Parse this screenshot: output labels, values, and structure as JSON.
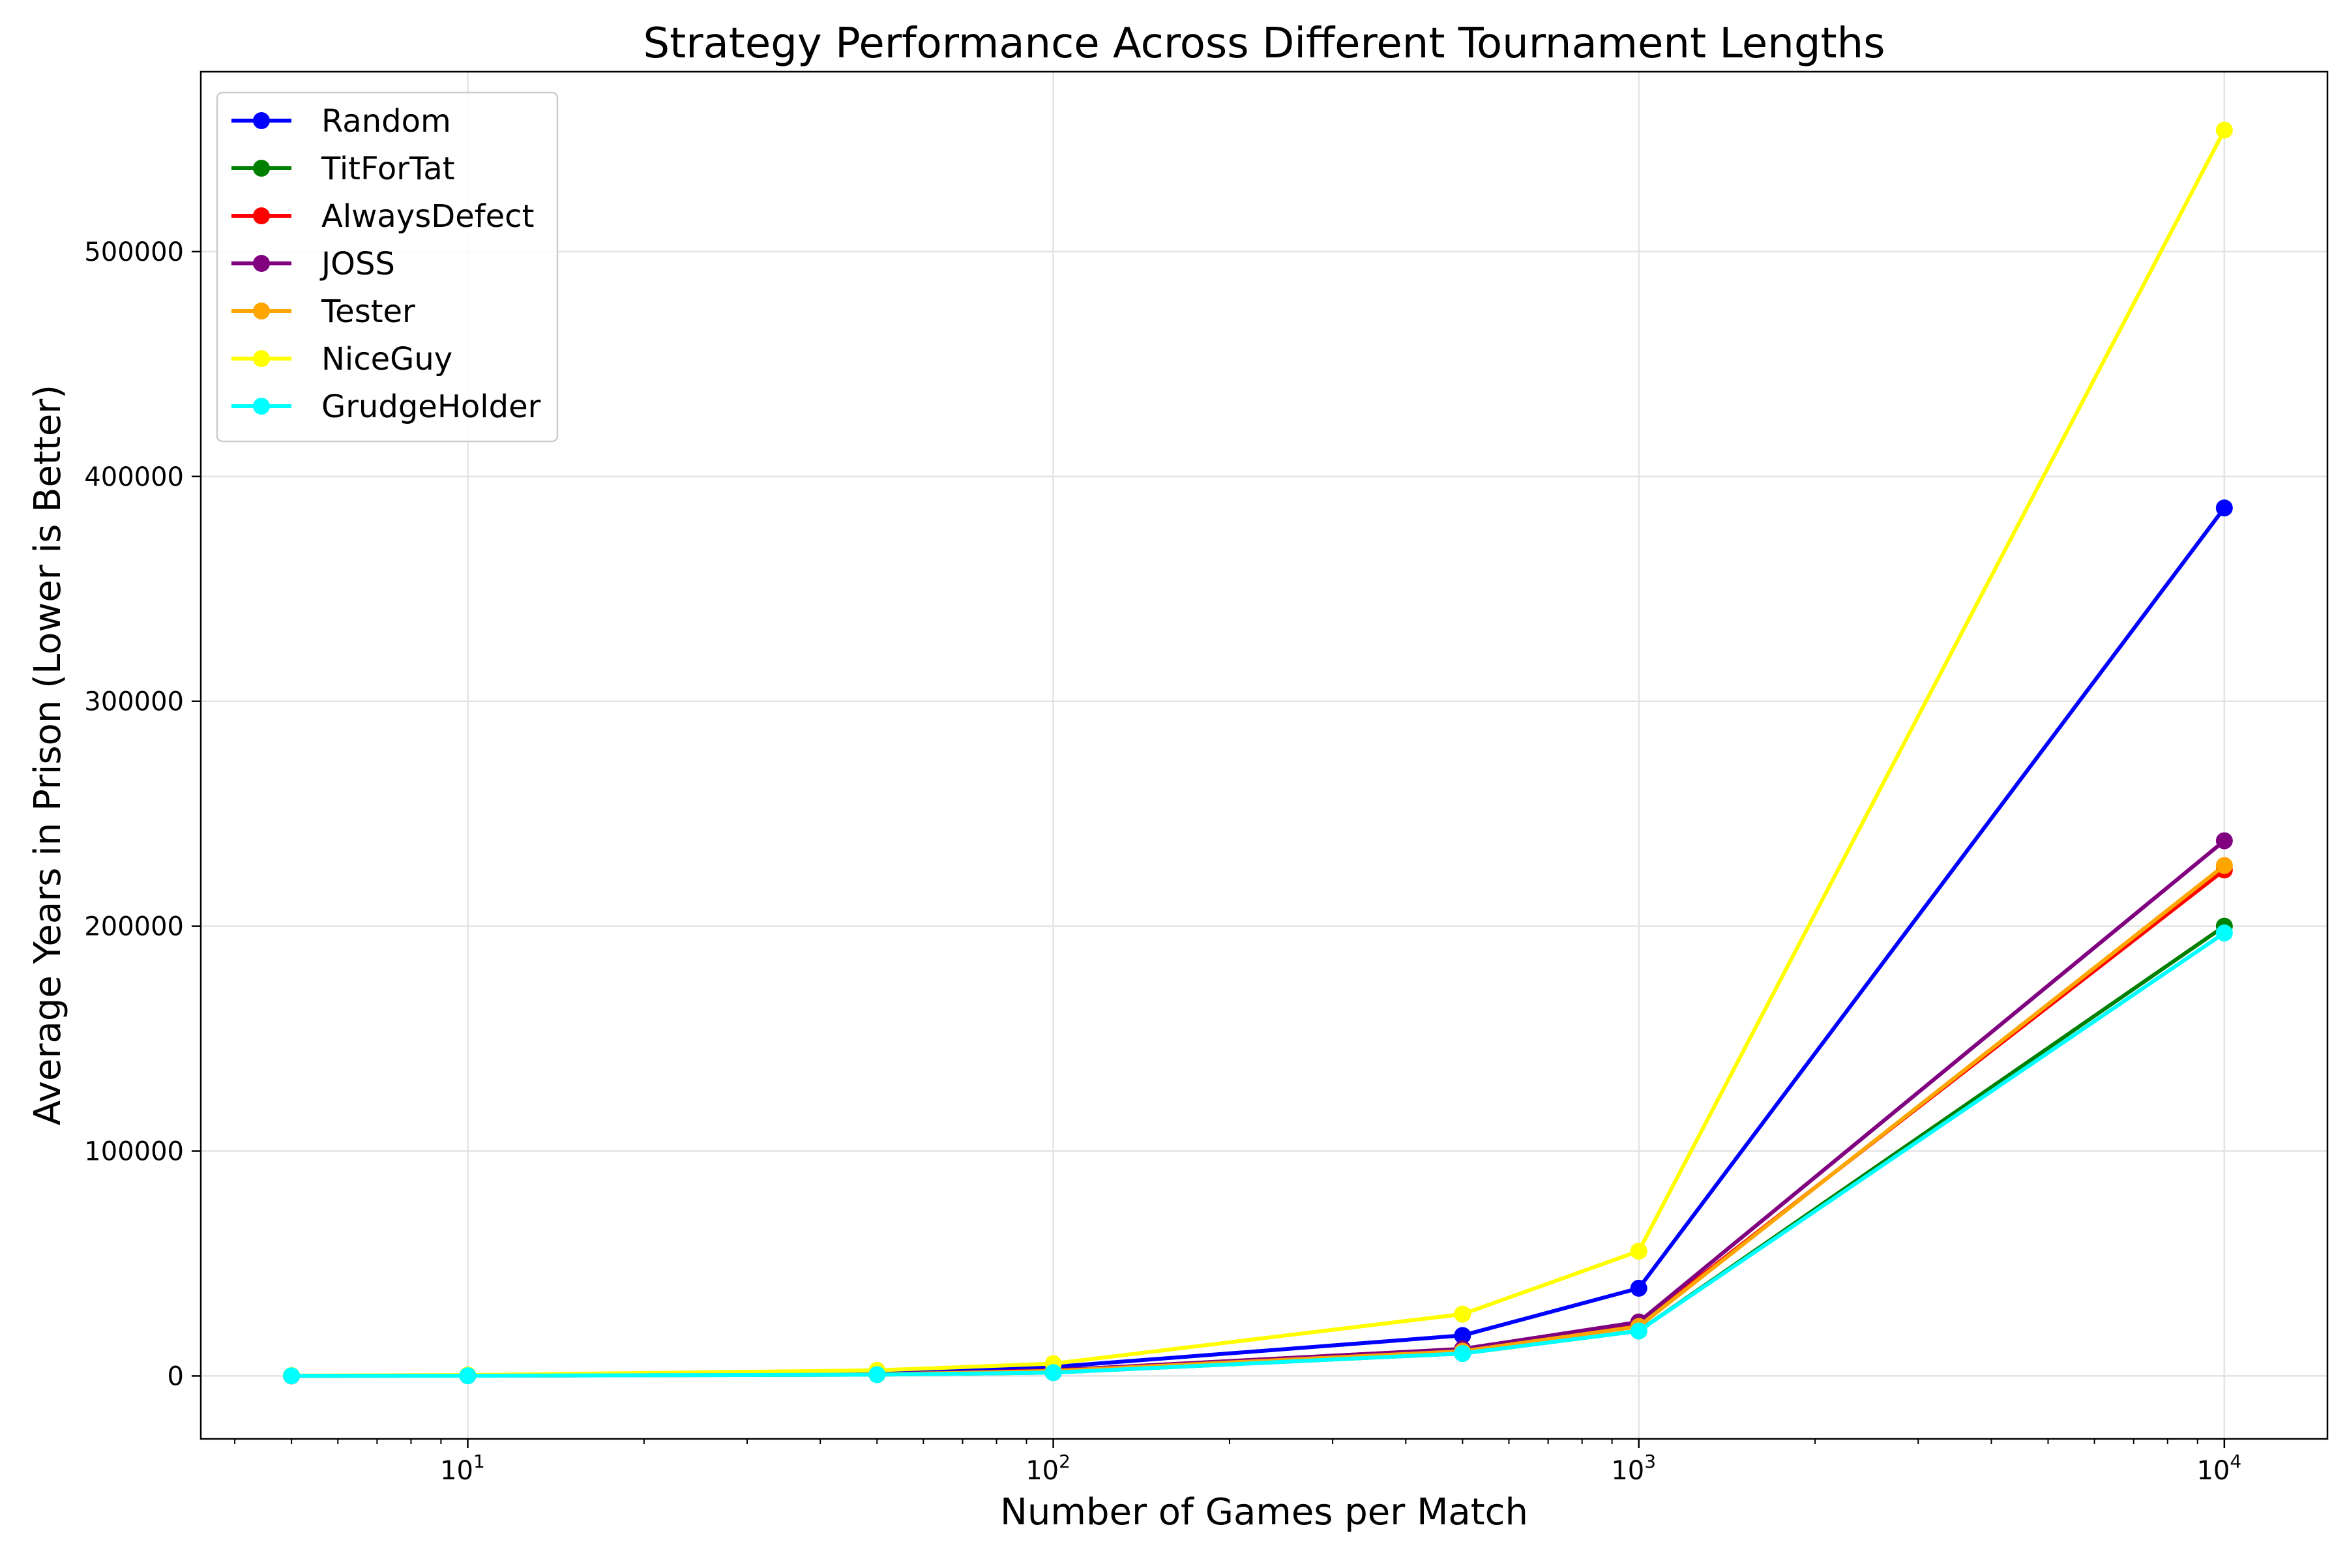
{
  "chart_data": {
    "type": "line",
    "title": "Strategy Performance Across Different Tournament Lengths",
    "xlabel": "Number of Games per Match",
    "ylabel": "Average Years in Prison (Lower is Better)",
    "x_scale": "log",
    "xlim": [
      3.5,
      15000
    ],
    "ylim": [
      -28000,
      580000
    ],
    "grid": true,
    "legend_position": "top-left",
    "x": [
      5,
      10,
      50,
      100,
      500,
      1000,
      10000
    ],
    "x_ticks": [
      {
        "value": 10,
        "base": "10",
        "exp": "1"
      },
      {
        "value": 100,
        "base": "10",
        "exp": "2"
      },
      {
        "value": 1000,
        "base": "10",
        "exp": "3"
      },
      {
        "value": 10000,
        "base": "10",
        "exp": "4"
      }
    ],
    "y_ticks": [
      {
        "value": 0,
        "label": "0"
      },
      {
        "value": 100000,
        "label": "100000"
      },
      {
        "value": 200000,
        "label": "200000"
      },
      {
        "value": 300000,
        "label": "300000"
      },
      {
        "value": 400000,
        "label": "400000"
      },
      {
        "value": 500000,
        "label": "500000"
      }
    ],
    "series": [
      {
        "name": "Random",
        "color": "#0000ff",
        "values": [
          100,
          200,
          1000,
          4000,
          18000,
          39000,
          386000
        ]
      },
      {
        "name": "TitForTat",
        "color": "#008000",
        "values": [
          50,
          100,
          600,
          1500,
          10000,
          20000,
          200000
        ]
      },
      {
        "name": "AlwaysDefect",
        "color": "#ff0000",
        "values": [
          60,
          120,
          700,
          2500,
          12000,
          23000,
          225000
        ]
      },
      {
        "name": "JOSS",
        "color": "#800080",
        "values": [
          60,
          120,
          700,
          2500,
          12000,
          24000,
          238000
        ]
      },
      {
        "name": "Tester",
        "color": "#ffa500",
        "values": [
          55,
          110,
          650,
          2200,
          11000,
          22000,
          227000
        ]
      },
      {
        "name": "NiceGuy",
        "color": "#ffff00",
        "values": [
          150,
          400,
          2500,
          5500,
          27500,
          55500,
          554000
        ]
      },
      {
        "name": "GrudgeHolder",
        "color": "#00ffff",
        "values": [
          50,
          100,
          600,
          1500,
          10000,
          20000,
          197000
        ]
      }
    ]
  }
}
